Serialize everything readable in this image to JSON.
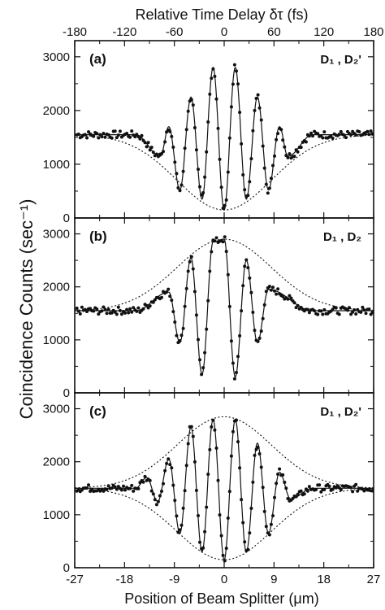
{
  "chart_data": {
    "type": "scatter",
    "top_axis": {
      "label": "Relative Time Delay δτ (fs)",
      "ticks": [
        "-180",
        "-120",
        "-60",
        "0",
        "60",
        "120",
        "180"
      ],
      "range": [
        -180,
        180
      ]
    },
    "x_axis": {
      "label": "Position of Beam Splitter (μm)",
      "ticks": [
        "-27",
        "-18",
        "-9",
        "0",
        "9",
        "18",
        "27"
      ],
      "range": [
        -27,
        27
      ]
    },
    "y_axis": {
      "label": "Coincidence Counts (sec⁻¹)",
      "range": [
        0,
        3300
      ],
      "ticks": [
        "0",
        "1000",
        "2000",
        "3000"
      ]
    },
    "panels": [
      {
        "tag": "(a)",
        "detectors": "D₁ , D₂'",
        "baseline": 1550,
        "fringe": "dip",
        "peaks": [
          {
            "x": -11.5,
            "y": 1150
          },
          {
            "x": -10.0,
            "y": 1700
          },
          {
            "x": -8.0,
            "y": 520
          },
          {
            "x": -6.0,
            "y": 2250
          },
          {
            "x": -4.0,
            "y": 350
          },
          {
            "x": -2.0,
            "y": 2800
          },
          {
            "x": 0.0,
            "y": 150
          },
          {
            "x": 2.0,
            "y": 2800
          },
          {
            "x": 4.0,
            "y": 350
          },
          {
            "x": 6.0,
            "y": 2250
          },
          {
            "x": 8.0,
            "y": 520
          },
          {
            "x": 10.0,
            "y": 1700
          },
          {
            "x": 11.5,
            "y": 1150
          }
        ],
        "envelope_upper": null,
        "envelope_lower": {
          "center": 0,
          "min": 150,
          "baseline": 1550,
          "width": 8.5
        }
      },
      {
        "tag": "(b)",
        "detectors": "D₁ , D₂",
        "baseline": 1550,
        "fringe": "peak",
        "peaks": [
          {
            "x": -10.0,
            "y": 1900
          },
          {
            "x": -8.0,
            "y": 950
          },
          {
            "x": -6.0,
            "y": 2550
          },
          {
            "x": -4.0,
            "y": 350
          },
          {
            "x": -2.0,
            "y": 2850
          },
          {
            "x": 0.0,
            "y": 2900
          },
          {
            "x": 2.0,
            "y": 300
          },
          {
            "x": 4.0,
            "y": 2500
          },
          {
            "x": 6.0,
            "y": 950
          },
          {
            "x": 8.0,
            "y": 1950
          }
        ],
        "envelope_upper": {
          "center": 0,
          "max": 2900,
          "baseline": 1550,
          "width": 8.5
        },
        "envelope_lower": null
      },
      {
        "tag": "(c)",
        "detectors": "D₁ , D₂'",
        "baseline": 1500,
        "fringe": "both",
        "peaks": [
          {
            "x": -14.0,
            "y": 1700
          },
          {
            "x": -12.0,
            "y": 1250
          },
          {
            "x": -10.0,
            "y": 2050
          },
          {
            "x": -8.0,
            "y": 650
          },
          {
            "x": -6.0,
            "y": 2650
          },
          {
            "x": -4.0,
            "y": 300
          },
          {
            "x": -2.0,
            "y": 2800
          },
          {
            "x": 0.0,
            "y": 150
          },
          {
            "x": 2.0,
            "y": 2800
          },
          {
            "x": 4.0,
            "y": 300
          },
          {
            "x": 6.0,
            "y": 2350
          },
          {
            "x": 8.0,
            "y": 650
          },
          {
            "x": 10.0,
            "y": 1800
          },
          {
            "x": 12.0,
            "y": 1300
          }
        ],
        "envelope_upper": {
          "center": 0,
          "max": 2850,
          "baseline": 1500,
          "width": 8.5
        },
        "envelope_lower": {
          "center": 0,
          "min": 150,
          "baseline": 1500,
          "width": 8.5
        }
      }
    ],
    "grid": false
  }
}
